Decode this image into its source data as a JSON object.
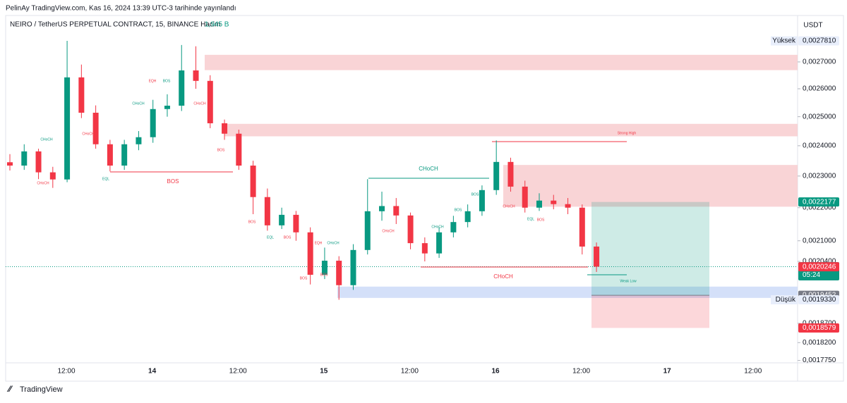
{
  "header": {
    "published": "PelinAy TradingView.com, Kas 16, 2024 13:39 UTC-3 tarihinde yayınlandı",
    "symbol": "NEIRO / TetherUS PERPETUAL CONTRACT, 15, BINANCE  Hacim",
    "volume": "1,945 B",
    "currency": "USDT"
  },
  "chart": {
    "type": "candlestick",
    "log_scale": true,
    "up_color": "#089981",
    "down_color": "#f23645",
    "ylim": [
      0.001769,
      0.002882
    ],
    "yticks": [
      {
        "value": 0.0027,
        "label": "0,0027000"
      },
      {
        "value": 0.0026,
        "label": "0,0026000"
      },
      {
        "value": 0.0025,
        "label": "0,0025000"
      },
      {
        "value": 0.0024,
        "label": "0,0024000"
      },
      {
        "value": 0.0023,
        "label": "0,0023000"
      },
      {
        "value": 0.0022,
        "label": "0,0022000"
      },
      {
        "value": 0.0021,
        "label": "0,0021000"
      },
      {
        "value": 0.00204,
        "label": "0,0020400"
      },
      {
        "value": 0.00187,
        "label": "0,0018700"
      },
      {
        "value": 0.00182,
        "label": "0,0018200"
      },
      {
        "value": 0.001775,
        "label": "0,0017750"
      }
    ],
    "xticks": [
      "12:00",
      "14",
      "12:00",
      "15",
      "12:00",
      "16",
      "12:00",
      "17",
      "12:00"
    ],
    "open": [
      0.002345,
      0.002334,
      0.002381,
      0.002312,
      0.002289,
      0.002642,
      0.002514,
      0.002405,
      0.002334,
      0.002405,
      0.002429,
      0.002527,
      0.002539,
      0.002668,
      0.002629,
      0.002477,
      0.002441,
      0.002334,
      0.002233,
      0.002146,
      0.002178,
      0.002125,
      0.002002,
      0.002042,
      0.001973,
      0.002073,
      0.002189,
      0.002205,
      0.002176,
      0.002093,
      0.002063,
      0.002125,
      0.002156,
      0.002189,
      0.002255,
      0.002346,
      0.002266,
      0.0022,
      0.002222,
      0.002211,
      0.0022,
      0.002083
    ],
    "high": [
      0.002372,
      0.002405,
      0.00239,
      0.00233,
      0.002781,
      0.00269,
      0.00254,
      0.00242,
      0.00242,
      0.00245,
      0.00256,
      0.00258,
      0.002765,
      0.00276,
      0.00265,
      0.00249,
      0.002455,
      0.00235,
      0.00226,
      0.0022,
      0.00219,
      0.00214,
      0.00208,
      0.002055,
      0.00209,
      0.00229,
      0.00225,
      0.00223,
      0.002185,
      0.00211,
      0.00214,
      0.002175,
      0.00221,
      0.00227,
      0.002418,
      0.00236,
      0.002285,
      0.002245,
      0.00224,
      0.00223,
      0.00221,
      0.002095
    ],
    "low": [
      0.002318,
      0.00232,
      0.00229,
      0.002262,
      0.00228,
      0.002495,
      0.00239,
      0.002315,
      0.00232,
      0.002385,
      0.00241,
      0.0025,
      0.00252,
      0.0026,
      0.00246,
      0.00242,
      0.00232,
      0.00218,
      0.00213,
      0.002135,
      0.0021,
      0.001975,
      0.00199,
      0.001933,
      0.00196,
      0.00206,
      0.00216,
      0.00215,
      0.002075,
      0.00204,
      0.00205,
      0.00211,
      0.00214,
      0.002175,
      0.00224,
      0.00225,
      0.002185,
      0.00219,
      0.002195,
      0.00218,
      0.00206,
      0.00201
    ],
    "close": [
      0.002334,
      0.002381,
      0.002312,
      0.002289,
      0.002642,
      0.002514,
      0.002405,
      0.002334,
      0.002405,
      0.002429,
      0.002527,
      0.002539,
      0.002668,
      0.002629,
      0.002477,
      0.002441,
      0.002334,
      0.002233,
      0.002146,
      0.002178,
      0.002125,
      0.002002,
      0.002042,
      0.001973,
      0.002073,
      0.002189,
      0.002205,
      0.002176,
      0.002093,
      0.002063,
      0.002125,
      0.002156,
      0.002189,
      0.002255,
      0.002346,
      0.002266,
      0.0022,
      0.002222,
      0.002211,
      0.0022,
      0.002083,
      0.002025
    ],
    "zones": [
      {
        "top": 0.002727,
        "bottom": 0.002669,
        "color": "#f7c9cc"
      },
      {
        "top": 0.002475,
        "bottom": 0.002432,
        "color": "#f7c9cc"
      },
      {
        "top": 0.002336,
        "bottom": 0.002203,
        "color": "#f7c9cc"
      },
      {
        "top": 0.001969,
        "bottom": 0.001938,
        "color": "#c9d8f7"
      }
    ],
    "price_tags": [
      {
        "name": "Yüksek",
        "value": 0.002781,
        "label": "0,0027810",
        "color": "#e8eefb"
      },
      {
        "value": 0.0022177,
        "label": "0,0022177",
        "color": "#089981"
      },
      {
        "value": 0.002025,
        "label": "0,0020250",
        "sub": "05:24",
        "color": "#089981"
      },
      {
        "value": 0.0020246,
        "label": "0,0020246",
        "color": "#f23645"
      },
      {
        "value": 0.0019452,
        "label": "0,0019452",
        "color": "#787b86"
      },
      {
        "name": "Düşük",
        "value": 0.001933,
        "label": "0,0019330",
        "color": "#e8eefb"
      },
      {
        "value": 0.0018579,
        "label": "0,0018579",
        "color": "#f23645"
      }
    ],
    "annotations": [
      {
        "text": "CHoCH",
        "color": "#089981"
      },
      {
        "text": "BOS",
        "color": "#f23645"
      },
      {
        "text": "CHoCH",
        "color": "#f23645"
      },
      {
        "text": "Strong High",
        "color": "#f23645"
      },
      {
        "text": "Weak Low",
        "color": "#089981"
      },
      {
        "text": "EQH",
        "color": "#f23645"
      },
      {
        "text": "BOS",
        "color": "#089981"
      },
      {
        "text": "CHoCH",
        "color": "#089981"
      },
      {
        "text": "CHoCH",
        "color": "#f23645"
      },
      {
        "text": "CHoCH",
        "color": "#f23645"
      },
      {
        "text": "CHoCH",
        "color": "#089981"
      },
      {
        "text": "CHoCH",
        "color": "#f23645"
      },
      {
        "text": "EQL",
        "color": "#089981"
      },
      {
        "text": "BOS",
        "color": "#f23645"
      },
      {
        "text": "BOS",
        "color": "#f23645"
      },
      {
        "text": "EQL",
        "color": "#089981"
      },
      {
        "text": "BOS",
        "color": "#f23645"
      },
      {
        "text": "EQH",
        "color": "#f23645"
      },
      {
        "text": "CHoCH",
        "color": "#089981"
      },
      {
        "text": "BOS",
        "color": "#f23645"
      },
      {
        "text": "BOS",
        "color": "#f23645"
      },
      {
        "text": "CHoCH",
        "color": "#f23645"
      },
      {
        "text": "CHoCH",
        "color": "#089981"
      },
      {
        "text": "BOS",
        "color": "#089981"
      },
      {
        "text": "BOS",
        "color": "#089981"
      },
      {
        "text": "CHoCH",
        "color": "#f23645"
      },
      {
        "text": "EQL",
        "color": "#089981"
      },
      {
        "text": "BOS",
        "color": "#f23645"
      }
    ]
  },
  "footer": {
    "logo": "TradingView"
  }
}
